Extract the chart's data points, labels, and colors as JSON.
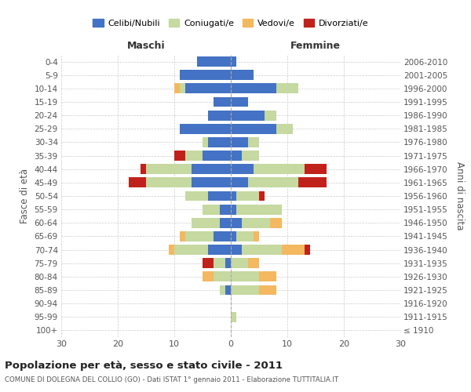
{
  "age_groups": [
    "100+",
    "95-99",
    "90-94",
    "85-89",
    "80-84",
    "75-79",
    "70-74",
    "65-69",
    "60-64",
    "55-59",
    "50-54",
    "45-49",
    "40-44",
    "35-39",
    "30-34",
    "25-29",
    "20-24",
    "15-19",
    "10-14",
    "5-9",
    "0-4"
  ],
  "birth_years": [
    "≤ 1910",
    "1911-1915",
    "1916-1920",
    "1921-1925",
    "1926-1930",
    "1931-1935",
    "1936-1940",
    "1941-1945",
    "1946-1950",
    "1951-1955",
    "1956-1960",
    "1961-1965",
    "1966-1970",
    "1971-1975",
    "1976-1980",
    "1981-1985",
    "1986-1990",
    "1991-1995",
    "1996-2000",
    "2001-2005",
    "2006-2010"
  ],
  "colors": {
    "celibi": "#4472C4",
    "coniugati": "#c5d9a0",
    "vedovi": "#f4b860",
    "divorziati": "#c0221b"
  },
  "maschi": {
    "celibi": [
      0,
      0,
      0,
      1,
      0,
      1,
      4,
      3,
      2,
      2,
      4,
      7,
      7,
      5,
      4,
      9,
      4,
      3,
      8,
      9,
      6
    ],
    "coniugati": [
      0,
      0,
      0,
      1,
      3,
      2,
      6,
      5,
      5,
      3,
      4,
      8,
      8,
      3,
      1,
      0,
      0,
      0,
      1,
      0,
      0
    ],
    "vedovi": [
      0,
      0,
      0,
      0,
      2,
      0,
      1,
      1,
      0,
      0,
      0,
      0,
      0,
      0,
      0,
      0,
      0,
      0,
      1,
      0,
      0
    ],
    "divorziati": [
      0,
      0,
      0,
      0,
      0,
      2,
      0,
      0,
      0,
      0,
      0,
      3,
      1,
      2,
      0,
      0,
      0,
      0,
      0,
      0,
      0
    ]
  },
  "femmine": {
    "celibi": [
      0,
      0,
      0,
      0,
      0,
      0,
      2,
      1,
      2,
      1,
      1,
      3,
      4,
      2,
      3,
      8,
      6,
      3,
      8,
      4,
      1
    ],
    "coniugati": [
      0,
      1,
      0,
      5,
      5,
      3,
      7,
      3,
      5,
      8,
      4,
      9,
      9,
      3,
      2,
      3,
      2,
      0,
      4,
      0,
      0
    ],
    "vedovi": [
      0,
      0,
      0,
      3,
      3,
      2,
      4,
      1,
      2,
      0,
      0,
      0,
      0,
      0,
      0,
      0,
      0,
      0,
      0,
      0,
      0
    ],
    "divorziati": [
      0,
      0,
      0,
      0,
      0,
      0,
      1,
      0,
      0,
      0,
      1,
      5,
      4,
      0,
      0,
      0,
      0,
      0,
      0,
      0,
      0
    ]
  },
  "xlim": 30,
  "title": "Popolazione per età, sesso e stato civile - 2011",
  "subtitle": "COMUNE DI DOLEGNA DEL COLLIO (GO) - Dati ISTAT 1° gennaio 2011 - Elaborazione TUTTITALIA.IT",
  "ylabel_left": "Fasce di età",
  "ylabel_right": "Anni di nascita",
  "xlabel_left": "Maschi",
  "xlabel_right": "Femmine",
  "legend_labels": [
    "Celibi/Nubili",
    "Coniugati/e",
    "Vedovi/e",
    "Divorziati/e"
  ],
  "background_color": "#ffffff",
  "grid_color": "#cccccc"
}
